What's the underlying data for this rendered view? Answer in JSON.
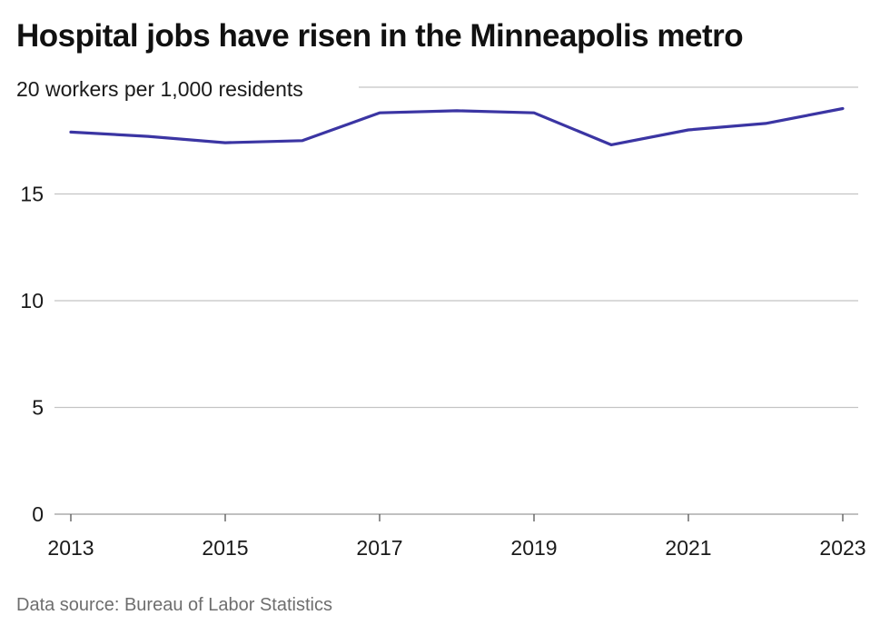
{
  "header": {
    "title": "Hospital jobs have risen in the Minneapolis metro"
  },
  "footer": {
    "source": "Data source: Bureau of Labor Statistics"
  },
  "chart_data": {
    "type": "line",
    "title": "Hospital jobs have risen in the Minneapolis metro",
    "xlabel": "",
    "ylabel": "",
    "top_tick_label": "20 workers per 1,000 residents",
    "x": [
      2013,
      2014,
      2015,
      2016,
      2017,
      2018,
      2019,
      2020,
      2021,
      2022,
      2023
    ],
    "x_tick_labels": [
      "2013",
      "2015",
      "2017",
      "2019",
      "2021",
      "2023"
    ],
    "y_ticks": [
      0,
      5,
      10,
      15,
      20
    ],
    "y_tick_labels": [
      "0",
      "5",
      "10",
      "15"
    ],
    "ylim": [
      0,
      20
    ],
    "series": [
      {
        "values": [
          17.9,
          17.7,
          17.4,
          17.5,
          18.8,
          18.9,
          18.8,
          17.3,
          18.0,
          18.3,
          19.0
        ]
      }
    ],
    "grid": true,
    "line_color": "#3b35a3",
    "grid_color": "#c4c4c4"
  }
}
